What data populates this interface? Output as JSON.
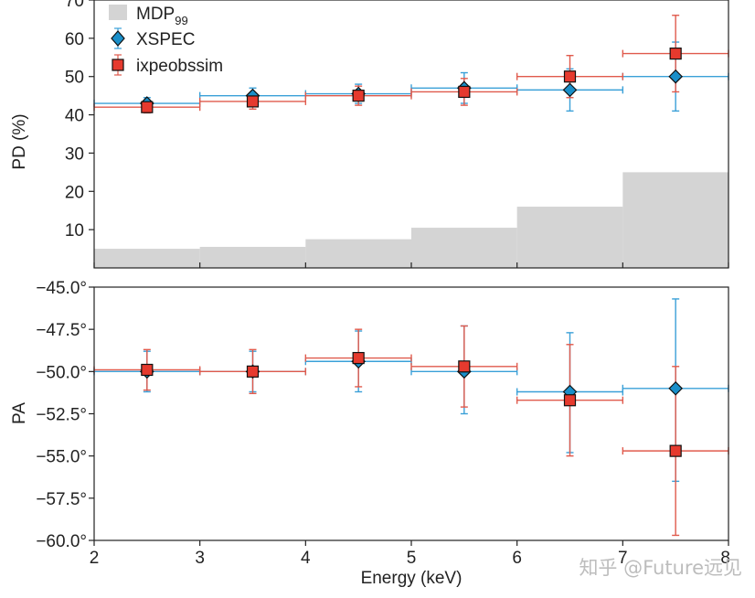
{
  "chart_data": [
    {
      "type": "scatter",
      "title": "",
      "xlabel": "",
      "ylabel": "PD (%)",
      "xlim": [
        2,
        8
      ],
      "ylim": [
        0,
        70
      ],
      "yticks": [
        "10",
        "20",
        "30",
        "40",
        "50",
        "60",
        "70"
      ],
      "grid": false,
      "legend": "top-left",
      "bars": {
        "name": "MDP99",
        "color": "#d4d4d4",
        "bins": [
          [
            2,
            3
          ],
          [
            3,
            4
          ],
          [
            4,
            5
          ],
          [
            5,
            6
          ],
          [
            6,
            7
          ],
          [
            7,
            8
          ]
        ],
        "values": [
          5,
          5.5,
          7.5,
          10.5,
          16,
          25
        ]
      },
      "series": [
        {
          "name": "XSPEC",
          "marker": "diamond",
          "color": "#1a8fc9",
          "errcolor": "#3aa0d8",
          "x": [
            2.5,
            3.5,
            4.5,
            5.5,
            6.5,
            7.5
          ],
          "xerr": [
            0.5,
            0.5,
            0.5,
            0.5,
            0.5,
            0.5
          ],
          "y": [
            43,
            45,
            45.5,
            47,
            46.5,
            50
          ],
          "yerr_low": [
            1.5,
            2,
            2.5,
            4,
            5.5,
            9
          ],
          "yerr_high": [
            1.5,
            2,
            2.5,
            4,
            5.5,
            9
          ]
        },
        {
          "name": "ixpeobssim",
          "marker": "square",
          "color": "#e63a2e",
          "errcolor": "#e05a4c",
          "x": [
            2.5,
            3.5,
            4.5,
            5.5,
            6.5,
            7.5
          ],
          "xerr": [
            0.5,
            0.5,
            0.5,
            0.5,
            0.5,
            0.5
          ],
          "y": [
            42,
            43.5,
            45,
            46,
            50,
            56
          ],
          "yerr_low": [
            1.5,
            2,
            2.5,
            3.5,
            5.5,
            10
          ],
          "yerr_high": [
            1.5,
            2,
            2.5,
            3.5,
            5.5,
            10
          ]
        }
      ]
    },
    {
      "type": "scatter",
      "title": "",
      "xlabel": "Energy (keV)",
      "ylabel": "PA",
      "xlim": [
        2,
        8
      ],
      "ylim": [
        -60,
        -45
      ],
      "xticks": [
        "2",
        "3",
        "4",
        "5",
        "6",
        "7",
        "8"
      ],
      "yticks": [
        "−60.0°",
        "−57.5°",
        "−55.0°",
        "−52.5°",
        "−50.0°",
        "−47.5°",
        "−45.0°"
      ],
      "grid": false,
      "series": [
        {
          "name": "XSPEC",
          "marker": "diamond",
          "color": "#1a8fc9",
          "errcolor": "#3aa0d8",
          "x": [
            2.5,
            3.5,
            4.5,
            5.5,
            6.5,
            7.5
          ],
          "xerr": [
            0.5,
            0.5,
            0.5,
            0.5,
            0.5,
            0.5
          ],
          "y": [
            -50,
            -50,
            -49.4,
            -50,
            -51.2,
            -51
          ],
          "yerr_low": [
            1.2,
            1.2,
            1.8,
            2.5,
            3.6,
            5.5
          ],
          "yerr_high": [
            1.2,
            1.2,
            1.8,
            2.7,
            3.5,
            5.3
          ]
        },
        {
          "name": "ixpeobssim",
          "marker": "square",
          "color": "#e63a2e",
          "errcolor": "#e05a4c",
          "x": [
            2.5,
            3.5,
            4.5,
            5.5,
            6.5,
            7.5
          ],
          "xerr": [
            0.5,
            0.5,
            0.5,
            0.5,
            0.5,
            0.5
          ],
          "y": [
            -49.9,
            -50,
            -49.2,
            -49.7,
            -51.7,
            -54.7
          ],
          "yerr_low": [
            1.2,
            1.3,
            1.7,
            2.4,
            3.3,
            5
          ],
          "yerr_high": [
            1.2,
            1.3,
            1.7,
            2.4,
            3.3,
            5
          ]
        }
      ]
    }
  ],
  "legend": {
    "mdp_label": "MDP",
    "mdp_sub": "99",
    "xspec_label": "XSPEC",
    "ixpe_label": "ixpeobssim"
  },
  "watermark": "知乎 @Future远见"
}
